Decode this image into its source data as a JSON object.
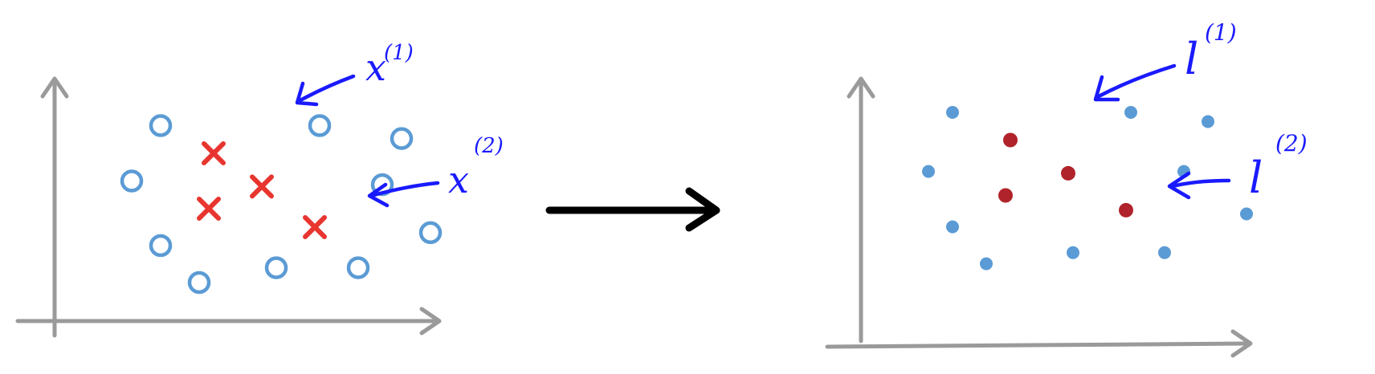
{
  "colors": {
    "axis": "#9a9a9a",
    "circle": "#5b9bd5",
    "cross": "#e8352f",
    "landmark_blue": "#5b9bd5",
    "landmark_red": "#b0232a",
    "annotation": "#1a1aff",
    "transform_arrow": "#000000"
  },
  "left_panel": {
    "circles": [
      [
        0.5,
        0.95
      ],
      [
        2.15,
        0.95
      ],
      [
        3.0,
        0.88
      ],
      [
        0.2,
        0.65
      ],
      [
        2.8,
        0.63
      ],
      [
        0.5,
        0.3
      ],
      [
        3.3,
        0.37
      ],
      [
        0.9,
        0.1
      ],
      [
        1.7,
        0.18
      ],
      [
        2.55,
        0.18
      ]
    ],
    "crosses": [
      [
        1.05,
        0.8
      ],
      [
        1.55,
        0.62
      ],
      [
        1.0,
        0.5
      ],
      [
        2.1,
        0.4
      ]
    ],
    "annotations": [
      {
        "symbol": "x",
        "superscript": "(1)"
      },
      {
        "symbol": "x",
        "superscript": "(2)"
      }
    ]
  },
  "right_panel": {
    "blue_points": [
      [
        0.55,
        1.0
      ],
      [
        2.4,
        1.0
      ],
      [
        3.2,
        0.95
      ],
      [
        0.3,
        0.68
      ],
      [
        2.95,
        0.68
      ],
      [
        0.55,
        0.38
      ],
      [
        3.6,
        0.45
      ],
      [
        0.9,
        0.18
      ],
      [
        1.8,
        0.24
      ],
      [
        2.75,
        0.24
      ]
    ],
    "red_points": [
      [
        1.15,
        0.85
      ],
      [
        1.75,
        0.67
      ],
      [
        1.1,
        0.55
      ],
      [
        2.35,
        0.47
      ]
    ],
    "annotations": [
      {
        "symbol": "l",
        "superscript": "(1)"
      },
      {
        "symbol": "l",
        "superscript": "(2)"
      }
    ]
  }
}
